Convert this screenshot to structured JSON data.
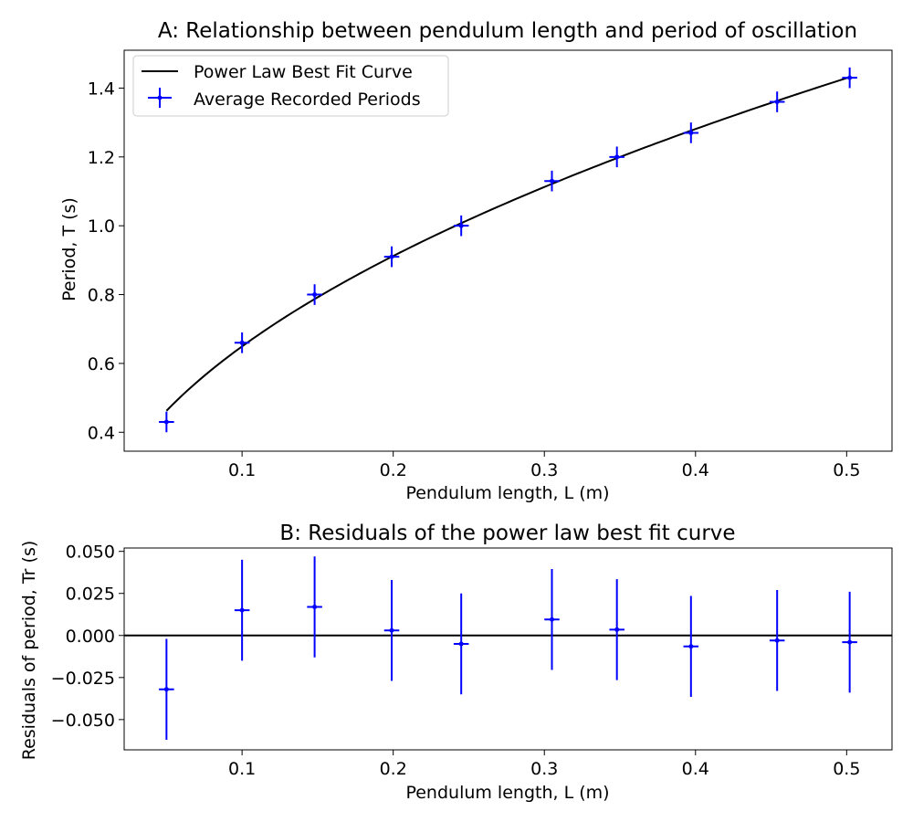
{
  "colors": {
    "fit_line": "#000000",
    "data_points": "#0000ff",
    "axes": "#000000",
    "background": "#ffffff"
  },
  "chart_data": [
    {
      "type": "scatter",
      "title": "A: Relationship between pendulum length and period of oscillation",
      "xlabel": "Pendulum length, L (m)",
      "ylabel": "Period, T (s)",
      "xlim": [
        0.022,
        0.53
      ],
      "ylim": [
        0.345,
        1.51
      ],
      "xticks": [
        0.1,
        0.2,
        0.3,
        0.4,
        0.5
      ],
      "xtick_labels": [
        "0.1",
        "0.2",
        "0.3",
        "0.4",
        "0.5"
      ],
      "yticks": [
        0.4,
        0.6,
        0.8,
        1.0,
        1.2,
        1.4
      ],
      "ytick_labels": [
        "0.4",
        "0.6",
        "0.8",
        "1.0",
        "1.2",
        "1.4"
      ],
      "grid": false,
      "legend": {
        "position": "upper-left",
        "entries": [
          "Power Law Best Fit Curve",
          "Average Recorded Periods"
        ]
      },
      "series": [
        {
          "name": "Power Law Best Fit Curve",
          "kind": "line",
          "model": "T = 2.007 * L^0.49",
          "x_range": [
            0.05,
            0.502
          ]
        },
        {
          "name": "Average Recorded Periods",
          "kind": "errorbar",
          "x": [
            0.05,
            0.1,
            0.148,
            0.199,
            0.245,
            0.305,
            0.348,
            0.397,
            0.454,
            0.502
          ],
          "y": [
            0.43,
            0.66,
            0.8,
            0.91,
            1.0,
            1.13,
            1.2,
            1.27,
            1.36,
            1.43
          ],
          "xerr": 0.005,
          "yerr": 0.03
        }
      ]
    },
    {
      "type": "scatter",
      "title": "B: Residuals of the power law best fit curve",
      "xlabel": "Pendulum length, L (m)",
      "ylabel": "Residuals of period, Tr (s)",
      "xlim": [
        0.022,
        0.53
      ],
      "ylim": [
        -0.068,
        0.052
      ],
      "xticks": [
        0.1,
        0.2,
        0.3,
        0.4,
        0.5
      ],
      "xtick_labels": [
        "0.1",
        "0.2",
        "0.3",
        "0.4",
        "0.5"
      ],
      "yticks": [
        0.05,
        0.025,
        0.0,
        -0.025,
        -0.05
      ],
      "ytick_labels": [
        "0.050",
        "0.025",
        "0.000",
        "−0.025",
        "−0.050"
      ],
      "grid": false,
      "reference_line": 0,
      "series": [
        {
          "kind": "errorbar",
          "x": [
            0.05,
            0.1,
            0.148,
            0.199,
            0.245,
            0.305,
            0.348,
            0.397,
            0.454,
            0.502
          ],
          "y": [
            -0.032,
            0.015,
            0.017,
            0.003,
            -0.005,
            0.0095,
            0.0035,
            -0.0065,
            -0.003,
            -0.004
          ],
          "xerr": 0.005,
          "yerr": 0.03
        }
      ]
    }
  ]
}
